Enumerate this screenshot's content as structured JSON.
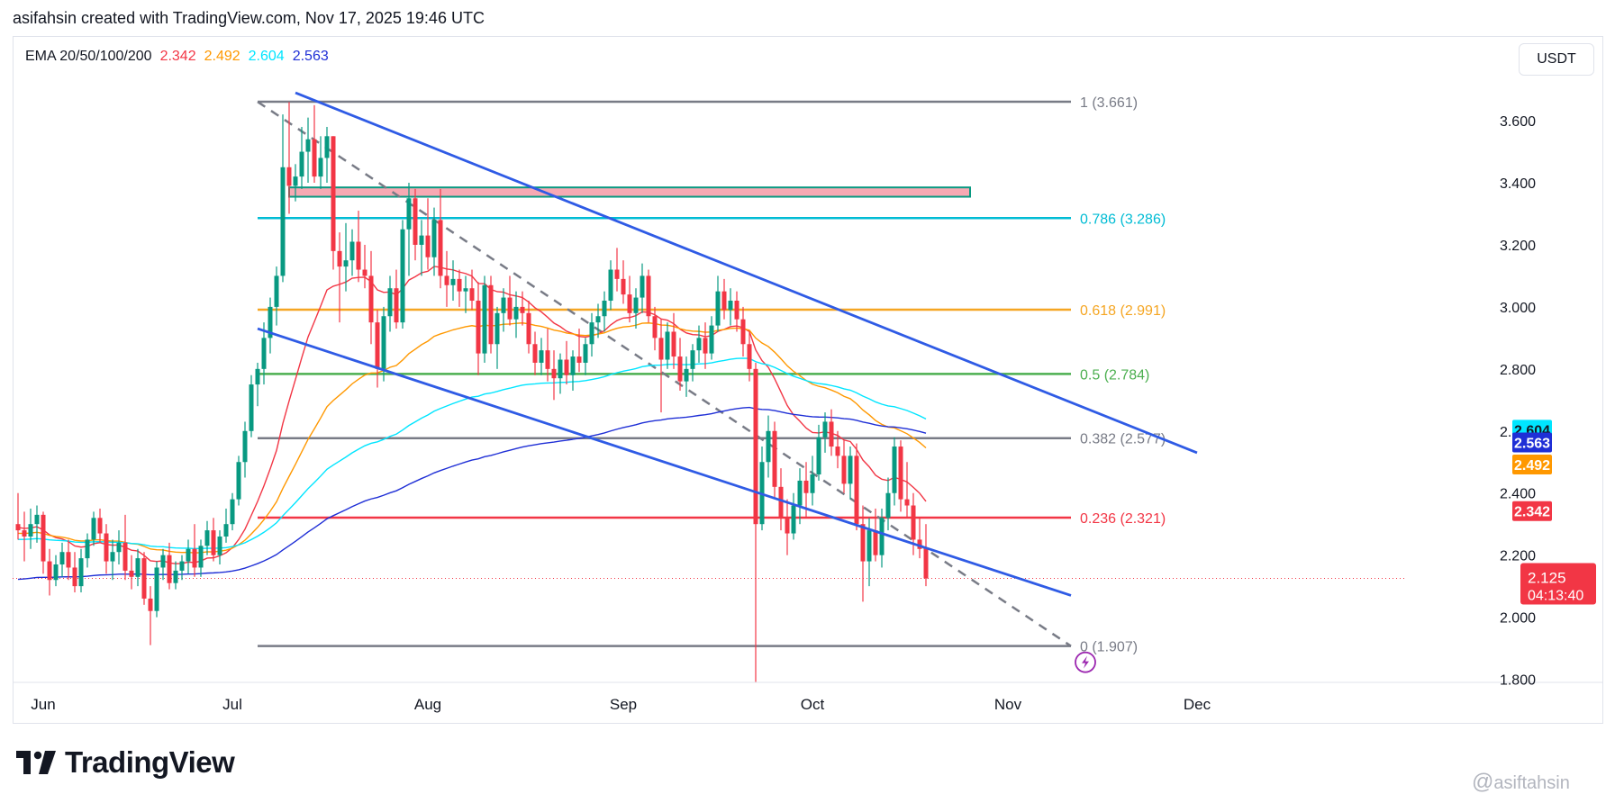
{
  "header": {
    "text": "asifahsin created with TradingView.com, Nov 17, 2025 19:46 UTC"
  },
  "legend": {
    "label": "EMA 20/50/100/200",
    "values": [
      "2.342",
      "2.492",
      "2.604",
      "2.563"
    ],
    "colors": [
      "#f23645",
      "#ff9800",
      "#00e5ff",
      "#1f2fd6"
    ]
  },
  "currency": "USDT",
  "brand": {
    "name": "TradingView"
  },
  "watermark": {
    "at": "@",
    "handle": "asiftahsin"
  },
  "colors": {
    "up": "#089981",
    "down": "#f23645",
    "channel": "#2f5be5",
    "fib_gray": "#787b86",
    "fib_teal": "#00bcd4",
    "fib_orange": "#f5a623",
    "fib_green": "#4caf50",
    "fib_red": "#f23645",
    "zone_fill": "#f7a9b3",
    "zone_border": "#089981"
  },
  "chart_data": {
    "type": "candlestick",
    "title": "",
    "quote_currency": "USDT",
    "ylim": [
      1.79,
      3.87
    ],
    "y_ticks": [
      "1.800",
      "2.000",
      "2.200",
      "2.400",
      "2.600",
      "2.800",
      "3.000",
      "3.200",
      "3.400",
      "3.600"
    ],
    "x_ticks": [
      {
        "label": "Jun",
        "day": 4
      },
      {
        "label": "Jul",
        "day": 34
      },
      {
        "label": "Aug",
        "day": 65
      },
      {
        "label": "Sep",
        "day": 96
      },
      {
        "label": "Oct",
        "day": 126
      },
      {
        "label": "Nov",
        "day": 157
      },
      {
        "label": "Dec",
        "day": 187
      }
    ],
    "candles": [
      [
        2.3,
        2.4,
        2.25,
        2.28
      ],
      [
        2.28,
        2.34,
        2.18,
        2.26
      ],
      [
        2.26,
        2.35,
        2.22,
        2.3
      ],
      [
        2.3,
        2.36,
        2.24,
        2.33
      ],
      [
        2.33,
        2.34,
        2.14,
        2.18
      ],
      [
        2.18,
        2.22,
        2.07,
        2.12
      ],
      [
        2.12,
        2.2,
        2.1,
        2.17
      ],
      [
        2.17,
        2.24,
        2.13,
        2.21
      ],
      [
        2.21,
        2.25,
        2.12,
        2.16
      ],
      [
        2.16,
        2.21,
        2.08,
        2.1
      ],
      [
        2.1,
        2.22,
        2.08,
        2.19
      ],
      [
        2.19,
        2.27,
        2.16,
        2.25
      ],
      [
        2.25,
        2.34,
        2.23,
        2.32
      ],
      [
        2.32,
        2.35,
        2.24,
        2.27
      ],
      [
        2.27,
        2.3,
        2.14,
        2.18
      ],
      [
        2.18,
        2.25,
        2.12,
        2.21
      ],
      [
        2.21,
        2.28,
        2.17,
        2.24
      ],
      [
        2.24,
        2.33,
        2.12,
        2.15
      ],
      [
        2.15,
        2.2,
        2.09,
        2.13
      ],
      [
        2.13,
        2.22,
        2.1,
        2.19
      ],
      [
        2.19,
        2.21,
        2.04,
        2.06
      ],
      [
        2.06,
        2.1,
        1.91,
        2.02
      ],
      [
        2.02,
        2.18,
        2.0,
        2.16
      ],
      [
        2.16,
        2.22,
        2.12,
        2.2
      ],
      [
        2.2,
        2.24,
        2.09,
        2.11
      ],
      [
        2.11,
        2.18,
        2.09,
        2.15
      ],
      [
        2.15,
        2.2,
        2.12,
        2.18
      ],
      [
        2.18,
        2.25,
        2.14,
        2.22
      ],
      [
        2.22,
        2.3,
        2.13,
        2.16
      ],
      [
        2.16,
        2.25,
        2.13,
        2.23
      ],
      [
        2.23,
        2.31,
        2.2,
        2.28
      ],
      [
        2.28,
        2.32,
        2.18,
        2.2
      ],
      [
        2.2,
        2.28,
        2.17,
        2.26
      ],
      [
        2.26,
        2.35,
        2.24,
        2.3
      ],
      [
        2.3,
        2.4,
        2.28,
        2.38
      ],
      [
        2.38,
        2.52,
        2.36,
        2.5
      ],
      [
        2.5,
        2.63,
        2.45,
        2.6
      ],
      [
        2.6,
        2.78,
        2.58,
        2.75
      ],
      [
        2.75,
        2.82,
        2.68,
        2.8
      ],
      [
        2.8,
        2.95,
        2.75,
        2.9
      ],
      [
        2.9,
        3.03,
        2.85,
        3.0
      ],
      [
        3.0,
        3.13,
        2.94,
        3.1
      ],
      [
        3.1,
        3.62,
        3.08,
        3.45
      ],
      [
        3.45,
        3.66,
        3.3,
        3.39
      ],
      [
        3.39,
        3.46,
        3.34,
        3.42
      ],
      [
        3.42,
        3.58,
        3.38,
        3.5
      ],
      [
        3.5,
        3.61,
        3.4,
        3.54
      ],
      [
        3.54,
        3.65,
        3.4,
        3.42
      ],
      [
        3.42,
        3.55,
        3.38,
        3.48
      ],
      [
        3.48,
        3.58,
        3.4,
        3.55
      ],
      [
        3.55,
        3.55,
        3.12,
        3.18
      ],
      [
        3.18,
        3.24,
        2.95,
        3.13
      ],
      [
        3.13,
        3.27,
        3.05,
        3.15
      ],
      [
        3.15,
        3.25,
        3.1,
        3.21
      ],
      [
        3.21,
        3.31,
        3.08,
        3.12
      ],
      [
        3.12,
        3.2,
        3.06,
        3.1
      ],
      [
        3.1,
        3.18,
        2.88,
        2.95
      ],
      [
        2.95,
        2.99,
        2.74,
        2.8
      ],
      [
        2.8,
        3.0,
        2.76,
        2.97
      ],
      [
        2.97,
        3.1,
        2.92,
        3.06
      ],
      [
        3.06,
        3.12,
        2.93,
        2.95
      ],
      [
        2.95,
        3.28,
        2.93,
        3.25
      ],
      [
        3.25,
        3.4,
        3.1,
        3.35
      ],
      [
        3.35,
        3.38,
        3.15,
        3.2
      ],
      [
        3.2,
        3.28,
        3.1,
        3.23
      ],
      [
        3.23,
        3.35,
        3.12,
        3.16
      ],
      [
        3.16,
        3.32,
        3.1,
        3.28
      ],
      [
        3.28,
        3.38,
        3.06,
        3.1
      ],
      [
        3.1,
        3.18,
        3.0,
        3.07
      ],
      [
        3.07,
        3.15,
        3.02,
        3.09
      ],
      [
        3.09,
        3.12,
        3.0,
        3.05
      ],
      [
        3.05,
        3.1,
        2.98,
        3.06
      ],
      [
        3.06,
        3.12,
        2.99,
        3.02
      ],
      [
        3.02,
        3.08,
        2.78,
        2.85
      ],
      [
        2.85,
        3.1,
        2.82,
        3.07
      ],
      [
        3.07,
        3.1,
        2.85,
        2.88
      ],
      [
        2.88,
        3.0,
        2.8,
        2.98
      ],
      [
        2.98,
        3.06,
        2.92,
        3.03
      ],
      [
        3.03,
        3.1,
        2.94,
        2.96
      ],
      [
        2.96,
        3.05,
        2.9,
        3.0
      ],
      [
        3.0,
        3.05,
        2.94,
        2.98
      ],
      [
        2.98,
        3.02,
        2.85,
        2.88
      ],
      [
        2.88,
        2.92,
        2.78,
        2.82
      ],
      [
        2.82,
        2.9,
        2.78,
        2.86
      ],
      [
        2.86,
        2.93,
        2.76,
        2.8
      ],
      [
        2.8,
        2.86,
        2.7,
        2.77
      ],
      [
        2.77,
        2.85,
        2.72,
        2.83
      ],
      [
        2.83,
        2.89,
        2.75,
        2.78
      ],
      [
        2.78,
        2.86,
        2.73,
        2.84
      ],
      [
        2.84,
        2.93,
        2.79,
        2.82
      ],
      [
        2.82,
        2.9,
        2.78,
        2.88
      ],
      [
        2.88,
        2.98,
        2.84,
        2.95
      ],
      [
        2.95,
        3.01,
        2.9,
        2.97
      ],
      [
        2.97,
        3.05,
        2.92,
        3.02
      ],
      [
        3.02,
        3.15,
        2.99,
        3.12
      ],
      [
        3.12,
        3.19,
        3.05,
        3.09
      ],
      [
        3.09,
        3.15,
        3.01,
        3.04
      ],
      [
        3.04,
        3.1,
        2.95,
        2.98
      ],
      [
        2.98,
        3.06,
        2.93,
        3.03
      ],
      [
        3.03,
        3.14,
        2.98,
        3.1
      ],
      [
        3.1,
        3.12,
        2.95,
        2.97
      ],
      [
        2.97,
        3.0,
        2.86,
        2.9
      ],
      [
        2.9,
        2.96,
        2.66,
        2.83
      ],
      [
        2.83,
        2.95,
        2.8,
        2.92
      ],
      [
        2.92,
        2.98,
        2.8,
        2.84
      ],
      [
        2.84,
        2.9,
        2.73,
        2.76
      ],
      [
        2.76,
        2.84,
        2.71,
        2.8
      ],
      [
        2.8,
        2.88,
        2.76,
        2.86
      ],
      [
        2.86,
        2.94,
        2.82,
        2.9
      ],
      [
        2.9,
        2.95,
        2.8,
        2.85
      ],
      [
        2.85,
        2.97,
        2.83,
        2.94
      ],
      [
        2.94,
        3.1,
        2.92,
        3.05
      ],
      [
        3.05,
        3.09,
        2.96,
        2.99
      ],
      [
        2.99,
        3.06,
        2.94,
        3.02
      ],
      [
        3.02,
        3.05,
        2.92,
        2.96
      ],
      [
        2.96,
        3.0,
        2.84,
        2.88
      ],
      [
        2.88,
        2.92,
        2.76,
        2.8
      ],
      [
        2.8,
        2.82,
        1.79,
        2.3
      ],
      [
        2.3,
        2.55,
        2.28,
        2.5
      ],
      [
        2.5,
        2.65,
        2.45,
        2.6
      ],
      [
        2.6,
        2.63,
        2.38,
        2.42
      ],
      [
        2.42,
        2.48,
        2.28,
        2.32
      ],
      [
        2.32,
        2.38,
        2.2,
        2.27
      ],
      [
        2.27,
        2.4,
        2.25,
        2.36
      ],
      [
        2.36,
        2.48,
        2.3,
        2.44
      ],
      [
        2.44,
        2.5,
        2.32,
        2.4
      ],
      [
        2.4,
        2.52,
        2.36,
        2.46
      ],
      [
        2.46,
        2.62,
        2.44,
        2.58
      ],
      [
        2.58,
        2.66,
        2.53,
        2.63
      ],
      [
        2.63,
        2.67,
        2.52,
        2.55
      ],
      [
        2.55,
        2.6,
        2.48,
        2.52
      ],
      [
        2.52,
        2.57,
        2.4,
        2.43
      ],
      [
        2.43,
        2.55,
        2.38,
        2.52
      ],
      [
        2.52,
        2.56,
        2.28,
        2.3
      ],
      [
        2.3,
        2.36,
        2.05,
        2.18
      ],
      [
        2.18,
        2.32,
        2.1,
        2.28
      ],
      [
        2.28,
        2.35,
        2.18,
        2.2
      ],
      [
        2.2,
        2.35,
        2.16,
        2.32
      ],
      [
        2.32,
        2.45,
        2.28,
        2.4
      ],
      [
        2.4,
        2.58,
        2.36,
        2.55
      ],
      [
        2.55,
        2.57,
        2.34,
        2.38
      ],
      [
        2.38,
        2.5,
        2.32,
        2.36
      ],
      [
        2.36,
        2.4,
        2.2,
        2.25
      ],
      [
        2.25,
        2.32,
        2.19,
        2.22
      ],
      [
        2.22,
        2.3,
        2.1,
        2.125
      ]
    ],
    "ema": [
      {
        "name": "EMA 20",
        "period": 20,
        "last": 2.342,
        "color": "#f23645"
      },
      {
        "name": "EMA 50",
        "period": 50,
        "last": 2.492,
        "color": "#ff9800"
      },
      {
        "name": "EMA 100",
        "period": 100,
        "last": 2.604,
        "color": "#00e5ff"
      },
      {
        "name": "EMA 200",
        "period": 200,
        "last": 2.563,
        "color": "#1f2fd6"
      }
    ],
    "ema_seed": [
      2.29,
      2.27,
      2.25,
      2.12
    ],
    "ema_scale": [
      1.0,
      0.98,
      1.0,
      0.84
    ],
    "fib_levels": [
      {
        "ratio": "1",
        "price": 3.661,
        "label": "1 (3.661)",
        "color": "#787b86"
      },
      {
        "ratio": "0.786",
        "price": 3.286,
        "label": "0.786 (3.286)",
        "color": "#00bcd4"
      },
      {
        "ratio": "0.618",
        "price": 2.991,
        "label": "0.618 (2.991)",
        "color": "#f5a623"
      },
      {
        "ratio": "0.5",
        "price": 2.784,
        "label": "0.5 (2.784)",
        "color": "#4caf50"
      },
      {
        "ratio": "0.382",
        "price": 2.577,
        "label": "0.382 (2.577)",
        "color": "#787b86"
      },
      {
        "ratio": "0.236",
        "price": 2.321,
        "label": "0.236 (2.321)",
        "color": "#f23645"
      },
      {
        "ratio": "0",
        "price": 1.907,
        "label": "0 (1.907)",
        "color": "#787b86"
      }
    ],
    "fib_start_day": 38,
    "fib_end_day": 167,
    "fib_diagonal": {
      "from_day": 38,
      "from_price": 3.661,
      "to_day": 167,
      "to_price": 1.907
    },
    "channel": {
      "upper": {
        "from_day": 44,
        "from_price": 3.69,
        "to_day": 187,
        "to_price": 2.53
      },
      "lower": {
        "from_day": 38,
        "from_price": 2.93,
        "to_day": 167,
        "to_price": 2.07
      }
    },
    "resistance_zone": {
      "from_day": 43,
      "to_day": 151,
      "top": 3.385,
      "bottom": 3.355
    },
    "current_price": {
      "value": "2.125",
      "countdown": "04:13:40",
      "price": 2.125
    },
    "axis_badges": [
      {
        "text": "2.604",
        "price": 2.604,
        "color": "#00e5ff",
        "text_color": "#131722"
      },
      {
        "text": "2.563",
        "price": 2.563,
        "color": "#1f2fd6",
        "text_color": "#ffffff"
      },
      {
        "text": "2.492",
        "price": 2.492,
        "color": "#ff9800",
        "text_color": "#ffffff"
      },
      {
        "text": "2.342",
        "price": 2.342,
        "color": "#f23645",
        "text_color": "#ffffff"
      }
    ]
  }
}
